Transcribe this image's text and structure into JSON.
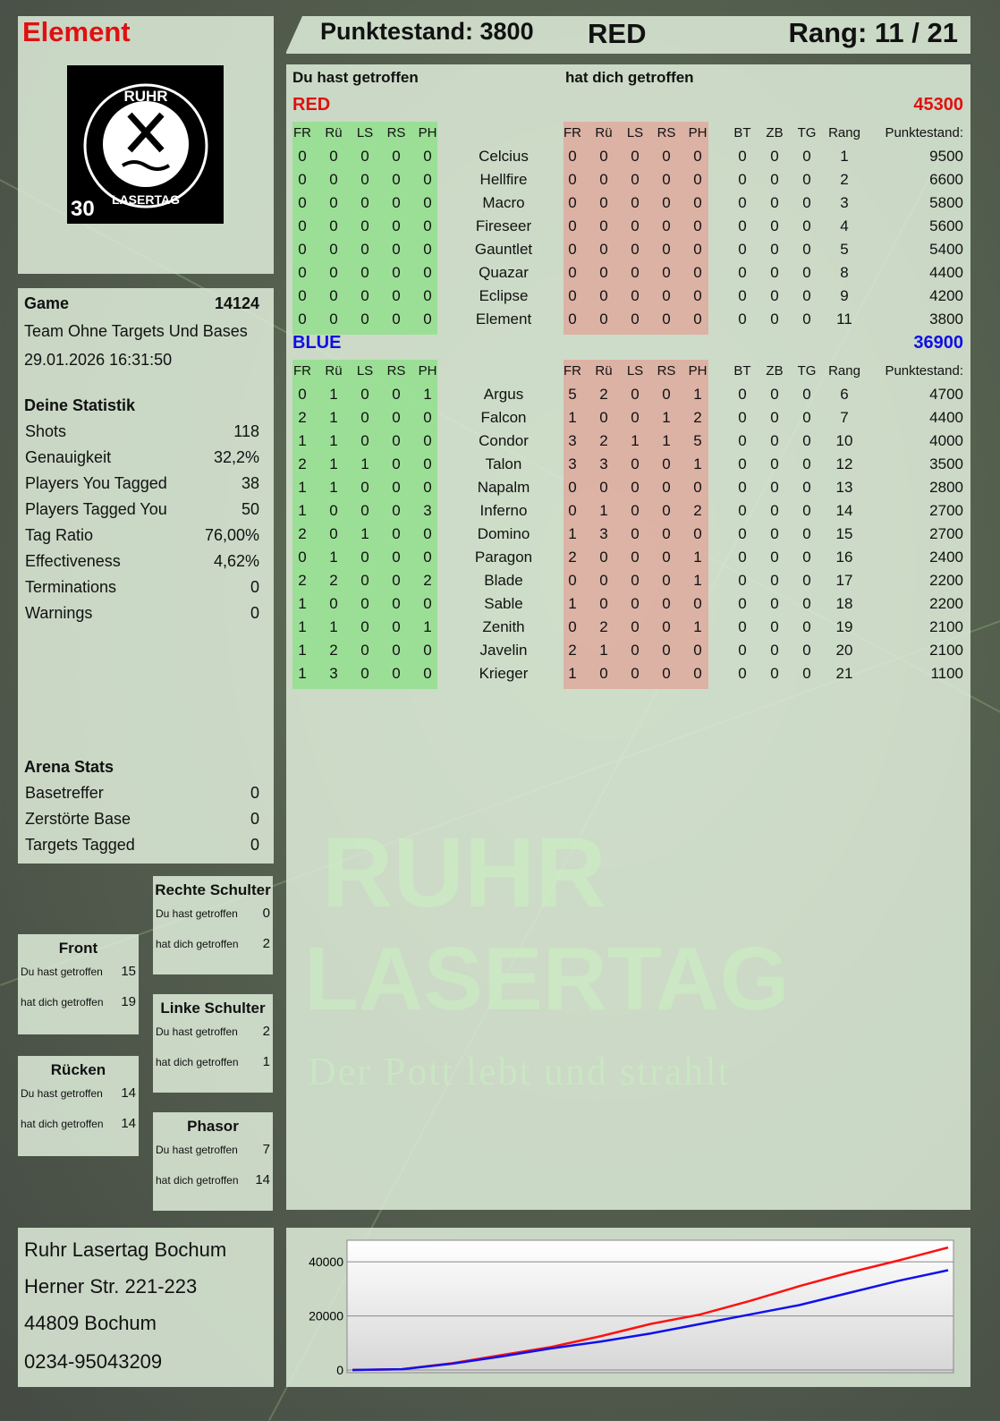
{
  "player": {
    "name": "Element",
    "logo": {
      "top": "RUHR",
      "bottom": "LASERTAG",
      "badge": "30"
    }
  },
  "header": {
    "score_label": "Punktestand: 3800",
    "team": "RED",
    "rank_label": "Rang: 11 / 21"
  },
  "main": {
    "you_hit_label": "Du hast getroffen",
    "hit_you_label": "hat dich getroffen",
    "columns": {
      "hit": [
        "FR",
        "Rü",
        "LS",
        "RS",
        "PH"
      ],
      "got": [
        "FR",
        "Rü",
        "LS",
        "RS",
        "PH"
      ],
      "extra": [
        "BT",
        "ZB",
        "TG",
        "Rang",
        "Punktestand:"
      ]
    },
    "teams": [
      {
        "name": "RED",
        "score": "45300",
        "color": "#e01010",
        "players": [
          {
            "name": "Celcius",
            "hit": [
              0,
              0,
              0,
              0,
              0
            ],
            "got": [
              0,
              0,
              0,
              0,
              0
            ],
            "bt": 0,
            "zb": 0,
            "tg": 0,
            "rank": 1,
            "score": 9500
          },
          {
            "name": "Hellfire",
            "hit": [
              0,
              0,
              0,
              0,
              0
            ],
            "got": [
              0,
              0,
              0,
              0,
              0
            ],
            "bt": 0,
            "zb": 0,
            "tg": 0,
            "rank": 2,
            "score": 6600
          },
          {
            "name": "Macro",
            "hit": [
              0,
              0,
              0,
              0,
              0
            ],
            "got": [
              0,
              0,
              0,
              0,
              0
            ],
            "bt": 0,
            "zb": 0,
            "tg": 0,
            "rank": 3,
            "score": 5800
          },
          {
            "name": "Fireseer",
            "hit": [
              0,
              0,
              0,
              0,
              0
            ],
            "got": [
              0,
              0,
              0,
              0,
              0
            ],
            "bt": 0,
            "zb": 0,
            "tg": 0,
            "rank": 4,
            "score": 5600
          },
          {
            "name": "Gauntlet",
            "hit": [
              0,
              0,
              0,
              0,
              0
            ],
            "got": [
              0,
              0,
              0,
              0,
              0
            ],
            "bt": 0,
            "zb": 0,
            "tg": 0,
            "rank": 5,
            "score": 5400
          },
          {
            "name": "Quazar",
            "hit": [
              0,
              0,
              0,
              0,
              0
            ],
            "got": [
              0,
              0,
              0,
              0,
              0
            ],
            "bt": 0,
            "zb": 0,
            "tg": 0,
            "rank": 8,
            "score": 4400
          },
          {
            "name": "Eclipse",
            "hit": [
              0,
              0,
              0,
              0,
              0
            ],
            "got": [
              0,
              0,
              0,
              0,
              0
            ],
            "bt": 0,
            "zb": 0,
            "tg": 0,
            "rank": 9,
            "score": 4200
          },
          {
            "name": "Element",
            "hit": [
              0,
              0,
              0,
              0,
              0
            ],
            "got": [
              0,
              0,
              0,
              0,
              0
            ],
            "bt": 0,
            "zb": 0,
            "tg": 0,
            "rank": 11,
            "score": 3800
          }
        ]
      },
      {
        "name": "BLUE",
        "score": "36900",
        "color": "#1010e0",
        "players": [
          {
            "name": "Argus",
            "hit": [
              0,
              1,
              0,
              0,
              1
            ],
            "got": [
              5,
              2,
              0,
              0,
              1
            ],
            "bt": 0,
            "zb": 0,
            "tg": 0,
            "rank": 6,
            "score": 4700
          },
          {
            "name": "Falcon",
            "hit": [
              2,
              1,
              0,
              0,
              0
            ],
            "got": [
              1,
              0,
              0,
              1,
              2
            ],
            "bt": 0,
            "zb": 0,
            "tg": 0,
            "rank": 7,
            "score": 4400
          },
          {
            "name": "Condor",
            "hit": [
              1,
              1,
              0,
              0,
              0
            ],
            "got": [
              3,
              2,
              1,
              1,
              5
            ],
            "bt": 0,
            "zb": 0,
            "tg": 0,
            "rank": 10,
            "score": 4000
          },
          {
            "name": "Talon",
            "hit": [
              2,
              1,
              1,
              0,
              0
            ],
            "got": [
              3,
              3,
              0,
              0,
              1
            ],
            "bt": 0,
            "zb": 0,
            "tg": 0,
            "rank": 12,
            "score": 3500
          },
          {
            "name": "Napalm",
            "hit": [
              1,
              1,
              0,
              0,
              0
            ],
            "got": [
              0,
              0,
              0,
              0,
              0
            ],
            "bt": 0,
            "zb": 0,
            "tg": 0,
            "rank": 13,
            "score": 2800
          },
          {
            "name": "Inferno",
            "hit": [
              1,
              0,
              0,
              0,
              3
            ],
            "got": [
              0,
              1,
              0,
              0,
              2
            ],
            "bt": 0,
            "zb": 0,
            "tg": 0,
            "rank": 14,
            "score": 2700
          },
          {
            "name": "Domino",
            "hit": [
              2,
              0,
              1,
              0,
              0
            ],
            "got": [
              1,
              3,
              0,
              0,
              0
            ],
            "bt": 0,
            "zb": 0,
            "tg": 0,
            "rank": 15,
            "score": 2700
          },
          {
            "name": "Paragon",
            "hit": [
              0,
              1,
              0,
              0,
              0
            ],
            "got": [
              2,
              0,
              0,
              0,
              1
            ],
            "bt": 0,
            "zb": 0,
            "tg": 0,
            "rank": 16,
            "score": 2400
          },
          {
            "name": "Blade",
            "hit": [
              2,
              2,
              0,
              0,
              2
            ],
            "got": [
              0,
              0,
              0,
              0,
              1
            ],
            "bt": 0,
            "zb": 0,
            "tg": 0,
            "rank": 17,
            "score": 2200
          },
          {
            "name": "Sable",
            "hit": [
              1,
              0,
              0,
              0,
              0
            ],
            "got": [
              1,
              0,
              0,
              0,
              0
            ],
            "bt": 0,
            "zb": 0,
            "tg": 0,
            "rank": 18,
            "score": 2200
          },
          {
            "name": "Zenith",
            "hit": [
              1,
              1,
              0,
              0,
              1
            ],
            "got": [
              0,
              2,
              0,
              0,
              1
            ],
            "bt": 0,
            "zb": 0,
            "tg": 0,
            "rank": 19,
            "score": 2100
          },
          {
            "name": "Javelin",
            "hit": [
              1,
              2,
              0,
              0,
              0
            ],
            "got": [
              2,
              1,
              0,
              0,
              0
            ],
            "bt": 0,
            "zb": 0,
            "tg": 0,
            "rank": 20,
            "score": 2100
          },
          {
            "name": "Krieger",
            "hit": [
              1,
              3,
              0,
              0,
              0
            ],
            "got": [
              1,
              0,
              0,
              0,
              0
            ],
            "bt": 0,
            "zb": 0,
            "tg": 0,
            "rank": 21,
            "score": 1100
          }
        ]
      }
    ],
    "hit_color": "#8fe08a",
    "got_color": "#e0a89c"
  },
  "game": {
    "label": "Game",
    "id": "14124",
    "mode": "Team Ohne Targets Und Bases",
    "datetime": "29.01.2026 16:31:50"
  },
  "stats": {
    "title": "Deine Statistik",
    "items": [
      {
        "label": "Shots",
        "value": "118"
      },
      {
        "label": "Genauigkeit",
        "value": "32,2%"
      },
      {
        "label": "Players You Tagged",
        "value": "38"
      },
      {
        "label": "Players Tagged You",
        "value": "50"
      },
      {
        "label": "Tag Ratio",
        "value": "76,00%"
      },
      {
        "label": "Effectiveness",
        "value": "4,62%"
      },
      {
        "label": "Terminations",
        "value": "0"
      },
      {
        "label": "Warnings",
        "value": "0"
      }
    ]
  },
  "arena": {
    "title": "Arena Stats",
    "items": [
      {
        "label": "Basetreffer",
        "value": "0"
      },
      {
        "label": "Zerstörte Base",
        "value": "0"
      },
      {
        "label": "Targets Tagged",
        "value": "0"
      }
    ]
  },
  "zones": [
    {
      "title": "Rechte Schulter",
      "you_hit": "Du hast getroffen",
      "you_hit_value": "0",
      "hit_you": "hat dich getroffen",
      "hit_you_value": "2"
    },
    {
      "title": "Front",
      "you_hit": "Du hast getroffen",
      "you_hit_value": "15",
      "hit_you": "hat dich getroffen",
      "hit_you_value": "19"
    },
    {
      "title": "Linke Schulter",
      "you_hit": "Du hast getroffen",
      "you_hit_value": "2",
      "hit_you": "hat dich getroffen",
      "hit_you_value": "1"
    },
    {
      "title": "Rücken",
      "you_hit": "Du hast getroffen",
      "you_hit_value": "14",
      "hit_you": "hat dich getroffen",
      "hit_you_value": "14"
    },
    {
      "title": "Phasor",
      "you_hit": "Du hast getroffen",
      "you_hit_value": "7",
      "hit_you": "hat dich getroffen",
      "hit_you_value": "14"
    }
  ],
  "address": {
    "lines": [
      "Ruhr Lasertag Bochum",
      "Herner Str. 221-223",
      "44809 Bochum",
      "0234-95043209"
    ]
  },
  "watermark": {
    "line1": "RUHR",
    "line2": "LASERTAG",
    "slogan": "Der Pott lebt und strahlt"
  },
  "chart_data": {
    "type": "line",
    "ylim": [
      0,
      47000
    ],
    "yticks": [
      "0",
      "20000",
      "40000"
    ],
    "grid": true,
    "series": [
      {
        "color": "#ff1010",
        "values": [
          0,
          300,
          2500,
          5500,
          8500,
          12500,
          17000,
          20500,
          25500,
          31000,
          36000,
          40500,
          45300
        ]
      },
      {
        "color": "#1010ee",
        "values": [
          0,
          300,
          2300,
          5000,
          8000,
          10500,
          13500,
          17000,
          20500,
          24000,
          28500,
          33000,
          36900
        ]
      }
    ]
  }
}
